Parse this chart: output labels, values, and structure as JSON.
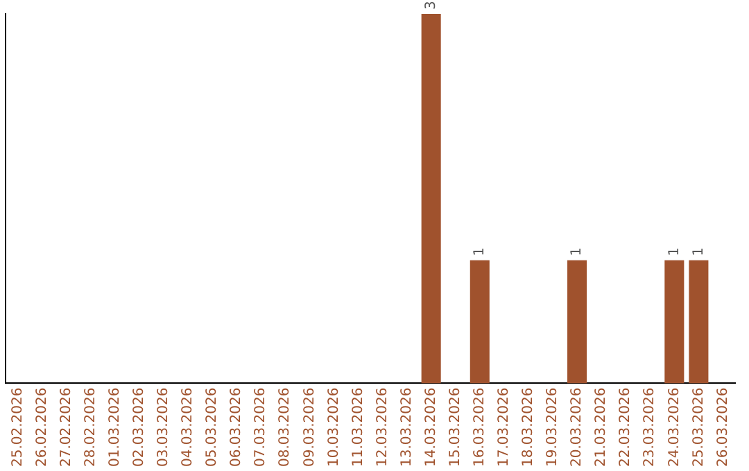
{
  "chart_data": {
    "type": "bar",
    "categories": [
      "25.02.2026",
      "26.02.2026",
      "27.02.2026",
      "28.02.2026",
      "01.03.2026",
      "02.03.2026",
      "03.03.2026",
      "04.03.2026",
      "05.03.2026",
      "06.03.2026",
      "07.03.2026",
      "08.03.2026",
      "09.03.2026",
      "10.03.2026",
      "11.03.2026",
      "12.03.2026",
      "13.03.2026",
      "14.03.2026",
      "15.03.2026",
      "16.03.2026",
      "17.03.2026",
      "18.03.2026",
      "19.03.2026",
      "20.03.2026",
      "21.03.2026",
      "22.03.2026",
      "23.03.2026",
      "24.03.2026",
      "25.03.2026",
      "26.03.2026"
    ],
    "values": [
      null,
      null,
      null,
      null,
      null,
      null,
      null,
      null,
      null,
      null,
      null,
      null,
      null,
      null,
      null,
      null,
      null,
      3,
      null,
      1,
      null,
      null,
      null,
      1,
      null,
      null,
      null,
      1,
      1,
      null
    ],
    "data_labels": true,
    "color": "#a0522d",
    "ylim": [
      0,
      3
    ],
    "grid": false,
    "legend": false,
    "tick_labels": "x"
  }
}
